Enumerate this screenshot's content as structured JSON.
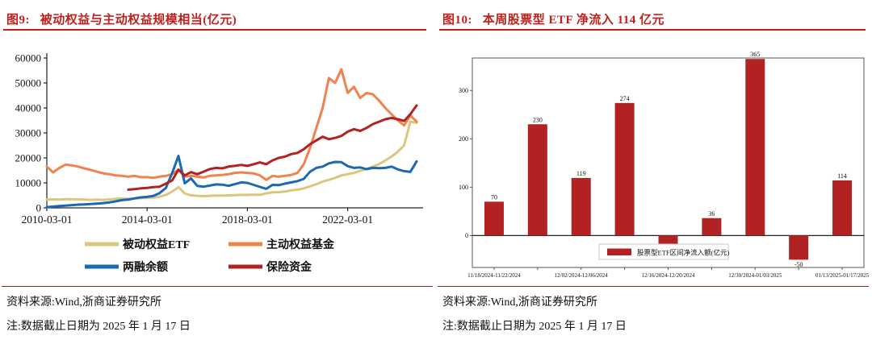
{
  "left_panel": {
    "title": "图9:   被动权益与主动权益规模相当(亿元)",
    "source": "资料来源:Wind,浙商证券研究所",
    "note": "注:数据截止日期为 2025 年 1 月 17 日"
  },
  "right_panel": {
    "title": "图10:   本周股票型 ETF 净流入 114 亿元",
    "source": "资料来源:Wind,浙商证券研究所",
    "note": "注:数据截止日期为 2025 年 1 月 17 日"
  },
  "colors": {
    "title_red": "#c0201c",
    "rule_red": "#a31f1f",
    "axis": "#222222",
    "bar_red": "#b22222",
    "etf_tan": "#dcc67e",
    "active_orange": "#f0824f",
    "margin_blue": "#1a69b2",
    "insurance_red": "#b42121"
  },
  "chart_data": [
    {
      "type": "line",
      "title": "被动权益与主动权益规模相当(亿元)",
      "xlabel": "",
      "ylabel": "",
      "ylim": [
        0,
        60000
      ],
      "yticks": [
        0,
        10000,
        20000,
        30000,
        40000,
        50000,
        60000
      ],
      "x_is_quarterly_index_from": "2010-03",
      "x_max_index": 59,
      "xticks": [
        {
          "index": 0,
          "label": "2010-03-01"
        },
        {
          "index": 16,
          "label": "2014-03-01"
        },
        {
          "index": 32,
          "label": "2018-03-01"
        },
        {
          "index": 48,
          "label": "2022-03-01"
        }
      ],
      "grid": false,
      "legend_position": "bottom",
      "series": [
        {
          "name": "被动权益ETF",
          "color": "#dcc67e",
          "start_index": 0,
          "values": [
            3300,
            3400,
            3300,
            3500,
            3500,
            3400,
            3300,
            3200,
            3300,
            3200,
            3400,
            3600,
            3700,
            3600,
            3700,
            3900,
            4000,
            4100,
            4500,
            5200,
            6500,
            8300,
            5800,
            5000,
            4800,
            4700,
            4800,
            4900,
            4900,
            5000,
            5100,
            5200,
            5200,
            5300,
            5200,
            5800,
            6200,
            6300,
            6500,
            7000,
            7300,
            7800,
            8600,
            9500,
            10500,
            11200,
            12000,
            13000,
            13500,
            14000,
            14800,
            15500,
            16500,
            17500,
            19000,
            20500,
            22500,
            25000,
            34500,
            34000
          ]
        },
        {
          "name": "主动权益基金",
          "color": "#f0824f",
          "start_index": 0,
          "values": [
            16500,
            14200,
            16000,
            17300,
            17000,
            16500,
            15800,
            15200,
            14500,
            13800,
            13500,
            13000,
            12800,
            12500,
            12800,
            12300,
            12300,
            12000,
            12500,
            12800,
            13500,
            15300,
            12500,
            12800,
            12500,
            12200,
            12800,
            13000,
            13200,
            13500,
            14000,
            14200,
            14000,
            13800,
            13000,
            11200,
            12800,
            12500,
            12800,
            13200,
            14000,
            17500,
            24000,
            32000,
            40000,
            52000,
            50000,
            55500,
            46000,
            48500,
            44000,
            46000,
            45500,
            43000,
            40000,
            37500,
            35000,
            33000,
            37000,
            34500
          ]
        },
        {
          "name": "两融余额",
          "color": "#1a69b2",
          "start_index": 0,
          "values": [
            300,
            500,
            700,
            900,
            1100,
            1300,
            1400,
            1500,
            1700,
            1900,
            2200,
            2600,
            3100,
            3300,
            3800,
            4200,
            4400,
            4800,
            5900,
            8000,
            14000,
            20800,
            9800,
            11800,
            8800,
            8500,
            8900,
            9400,
            9300,
            8800,
            9500,
            10200,
            10000,
            9200,
            8400,
            7600,
            9200,
            9100,
            9700,
            10200,
            10700,
            11600,
            14500,
            16000,
            16500,
            17800,
            18400,
            18300,
            16700,
            16000,
            16200,
            15500,
            16000,
            15900,
            16000,
            16500,
            15400,
            14700,
            14400,
            18600
          ]
        },
        {
          "name": "保险资金",
          "color": "#b42121",
          "start_index": 13,
          "values": [
            7300,
            7500,
            7800,
            8000,
            8300,
            8500,
            9700,
            11000,
            15300,
            13000,
            14300,
            13500,
            14500,
            15500,
            16000,
            15800,
            16500,
            16800,
            17200,
            16800,
            17500,
            18200,
            17500,
            19000,
            20000,
            20500,
            21500,
            22000,
            23500,
            25500,
            27000,
            28500,
            27500,
            28000,
            28800,
            30500,
            31500,
            30800,
            32000,
            33500,
            34500,
            35500,
            36000,
            35500,
            34800,
            37500,
            41000
          ]
        }
      ]
    },
    {
      "type": "bar",
      "title": "本周股票型 ETF 净流入 114 亿元",
      "legend": "股票型ETF区间净流入额(亿元)",
      "bar_color": "#b22222",
      "values": [
        70,
        230,
        119,
        274,
        -33,
        36,
        365,
        -50,
        114
      ],
      "bar_labels": [
        "70",
        "230",
        "119",
        "274",
        "",
        "36",
        "365",
        "-50",
        "114"
      ],
      "xtick_labels": [
        {
          "bar_index": 0,
          "label": "11/18/2024-11/22/2024"
        },
        {
          "bar_index": 2,
          "label": "12/02/2024-12/06/2024"
        },
        {
          "bar_index": 4,
          "label": "12/16/2024-12/20/2024"
        },
        {
          "bar_index": 6,
          "label": "12/30/2024-01/03/2025"
        },
        {
          "bar_index": 8,
          "label": "01/13/2025-01/17/2025"
        }
      ],
      "yticks": [
        0,
        100,
        200,
        300
      ],
      "ylim": [
        -66,
        367
      ],
      "grid": false,
      "legend_position": "bottom-center-inside"
    }
  ]
}
